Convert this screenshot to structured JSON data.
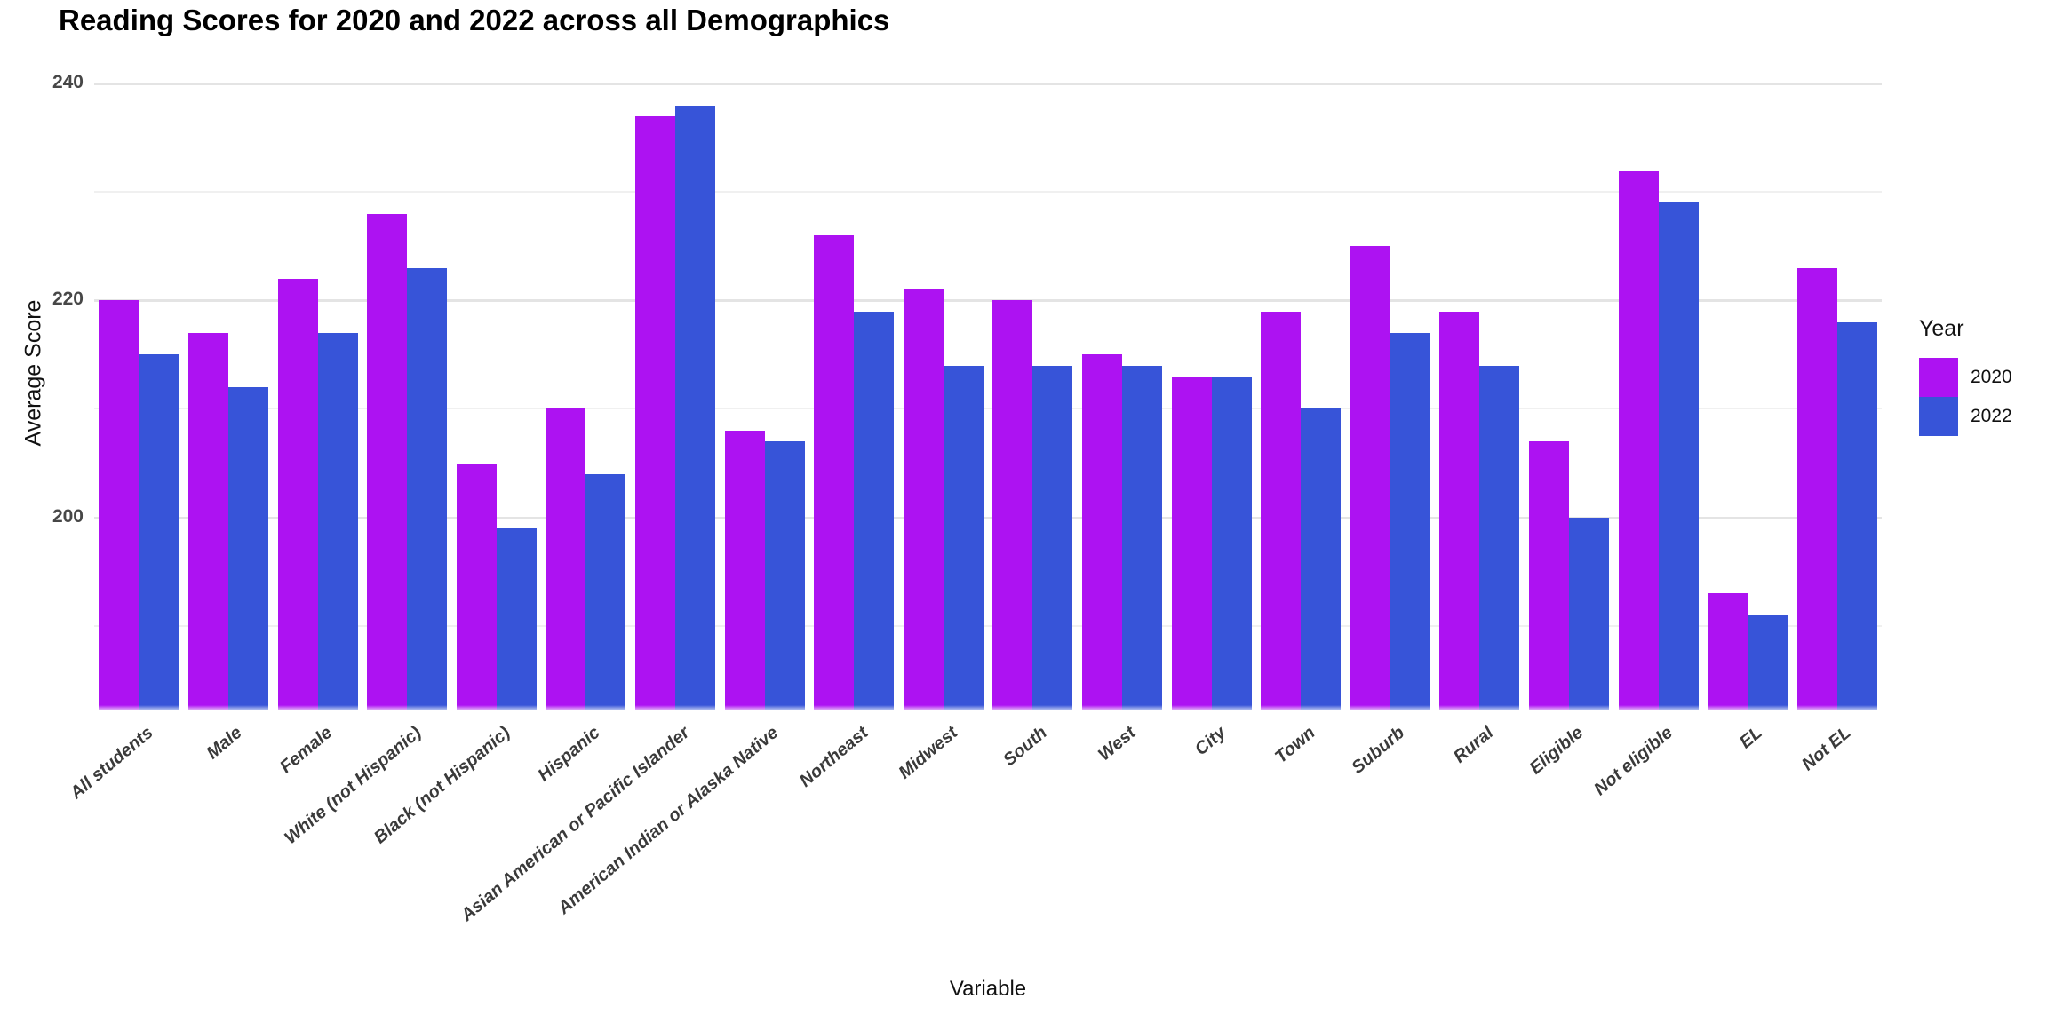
{
  "page_title": "Reading Scores for 2020 and 2022 across all Demographics",
  "axes": {
    "x_title": "Variable",
    "y_title": "Average Score"
  },
  "legend": {
    "title": "Year",
    "items": [
      {
        "label": "2020",
        "color": "#AD12F2"
      },
      {
        "label": "2022",
        "color": "#3754D8"
      }
    ]
  },
  "chart_data": {
    "type": "bar",
    "title": "Reading Scores for 2020 and 2022 across all Demographics",
    "xlabel": "Variable",
    "ylabel": "Average Score",
    "categories": [
      "All students",
      "Male",
      "Female",
      "White (not Hispanic)",
      "Black (not Hispanic)",
      "Hispanic",
      "Asian American or Pacific Islander",
      "American Indian or Alaska Native",
      "Northeast",
      "Midwest",
      "South",
      "West",
      "City",
      "Town",
      "Suburb",
      "Rural",
      "Eligible",
      "Not eligible",
      "EL",
      "Not EL"
    ],
    "series": [
      {
        "name": "2020",
        "color": "#AD12F2",
        "edge_color": "#E8C7F8",
        "values": [
          220,
          217,
          222,
          228,
          205,
          210,
          237,
          208,
          226,
          221,
          220,
          215,
          213,
          219,
          225,
          219,
          207,
          232,
          193,
          223
        ]
      },
      {
        "name": "2022",
        "color": "#3754D8",
        "edge_color": "#C9D2F4",
        "values": [
          215,
          212,
          217,
          223,
          199,
          204,
          238,
          207,
          219,
          214,
          214,
          214,
          213,
          210,
          217,
          214,
          200,
          229,
          191,
          218
        ]
      }
    ],
    "ylim": [
      182.2,
      242.3
    ],
    "yticks_major": [
      200,
      220,
      240
    ],
    "yticks_minor": [
      190,
      210,
      230
    ],
    "grid": true,
    "legend_position": "right",
    "bar_orientation": "vertical"
  }
}
